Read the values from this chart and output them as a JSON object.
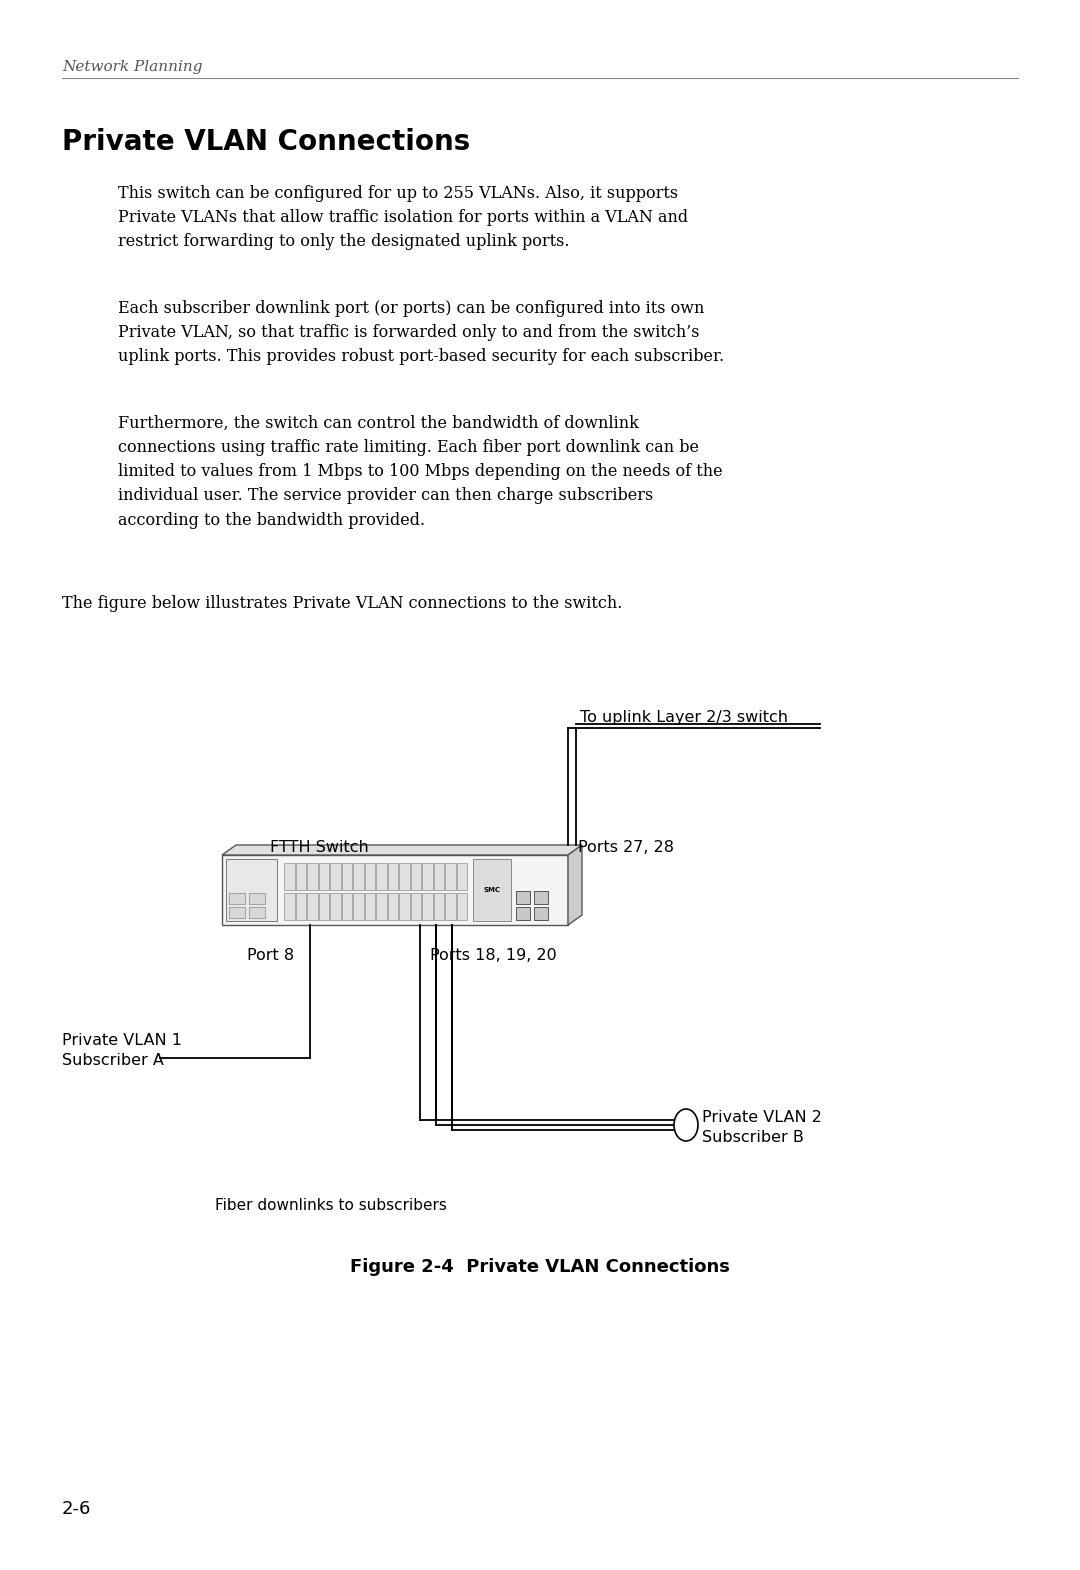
{
  "header": "Network Planning",
  "section_title": "Private VLAN Connections",
  "para1": "This switch can be configured for up to 255 VLANs. Also, it supports\nPrivate VLANs that allow traffic isolation for ports within a VLAN and\nrestrict forwarding to only the designated uplink ports.",
  "para2": "Each subscriber downlink port (or ports) can be configured into its own\nPrivate VLAN, so that traffic is forwarded only to and from the switch’s\nuplink ports. This provides robust port-based security for each subscriber.",
  "para3": "Furthermore, the switch can control the bandwidth of downlink\nconnections using traffic rate limiting. Each fiber port downlink can be\nlimited to values from 1 Mbps to 100 Mbps depending on the needs of the\nindividual user. The service provider can then charge subscribers\naccording to the bandwidth provided.",
  "para4": "The figure below illustrates Private VLAN connections to the switch.",
  "fig_caption": "Figure 2-4  Private VLAN Connections",
  "label_uplink": "To uplink Layer 2/3 switch",
  "label_ftth": "FTTH Switch",
  "label_ports27": "Ports 27, 28",
  "label_port8": "Port 8",
  "label_ports18": "Ports 18, 19, 20",
  "label_pvlan1": "Private VLAN 1\nSubscriber A",
  "label_pvlan2": "Private VLAN 2\nSubscriber B",
  "label_fiber": "Fiber downlinks to subscribers",
  "page_number": "2-6",
  "bg_color": "#ffffff",
  "text_color": "#000000"
}
